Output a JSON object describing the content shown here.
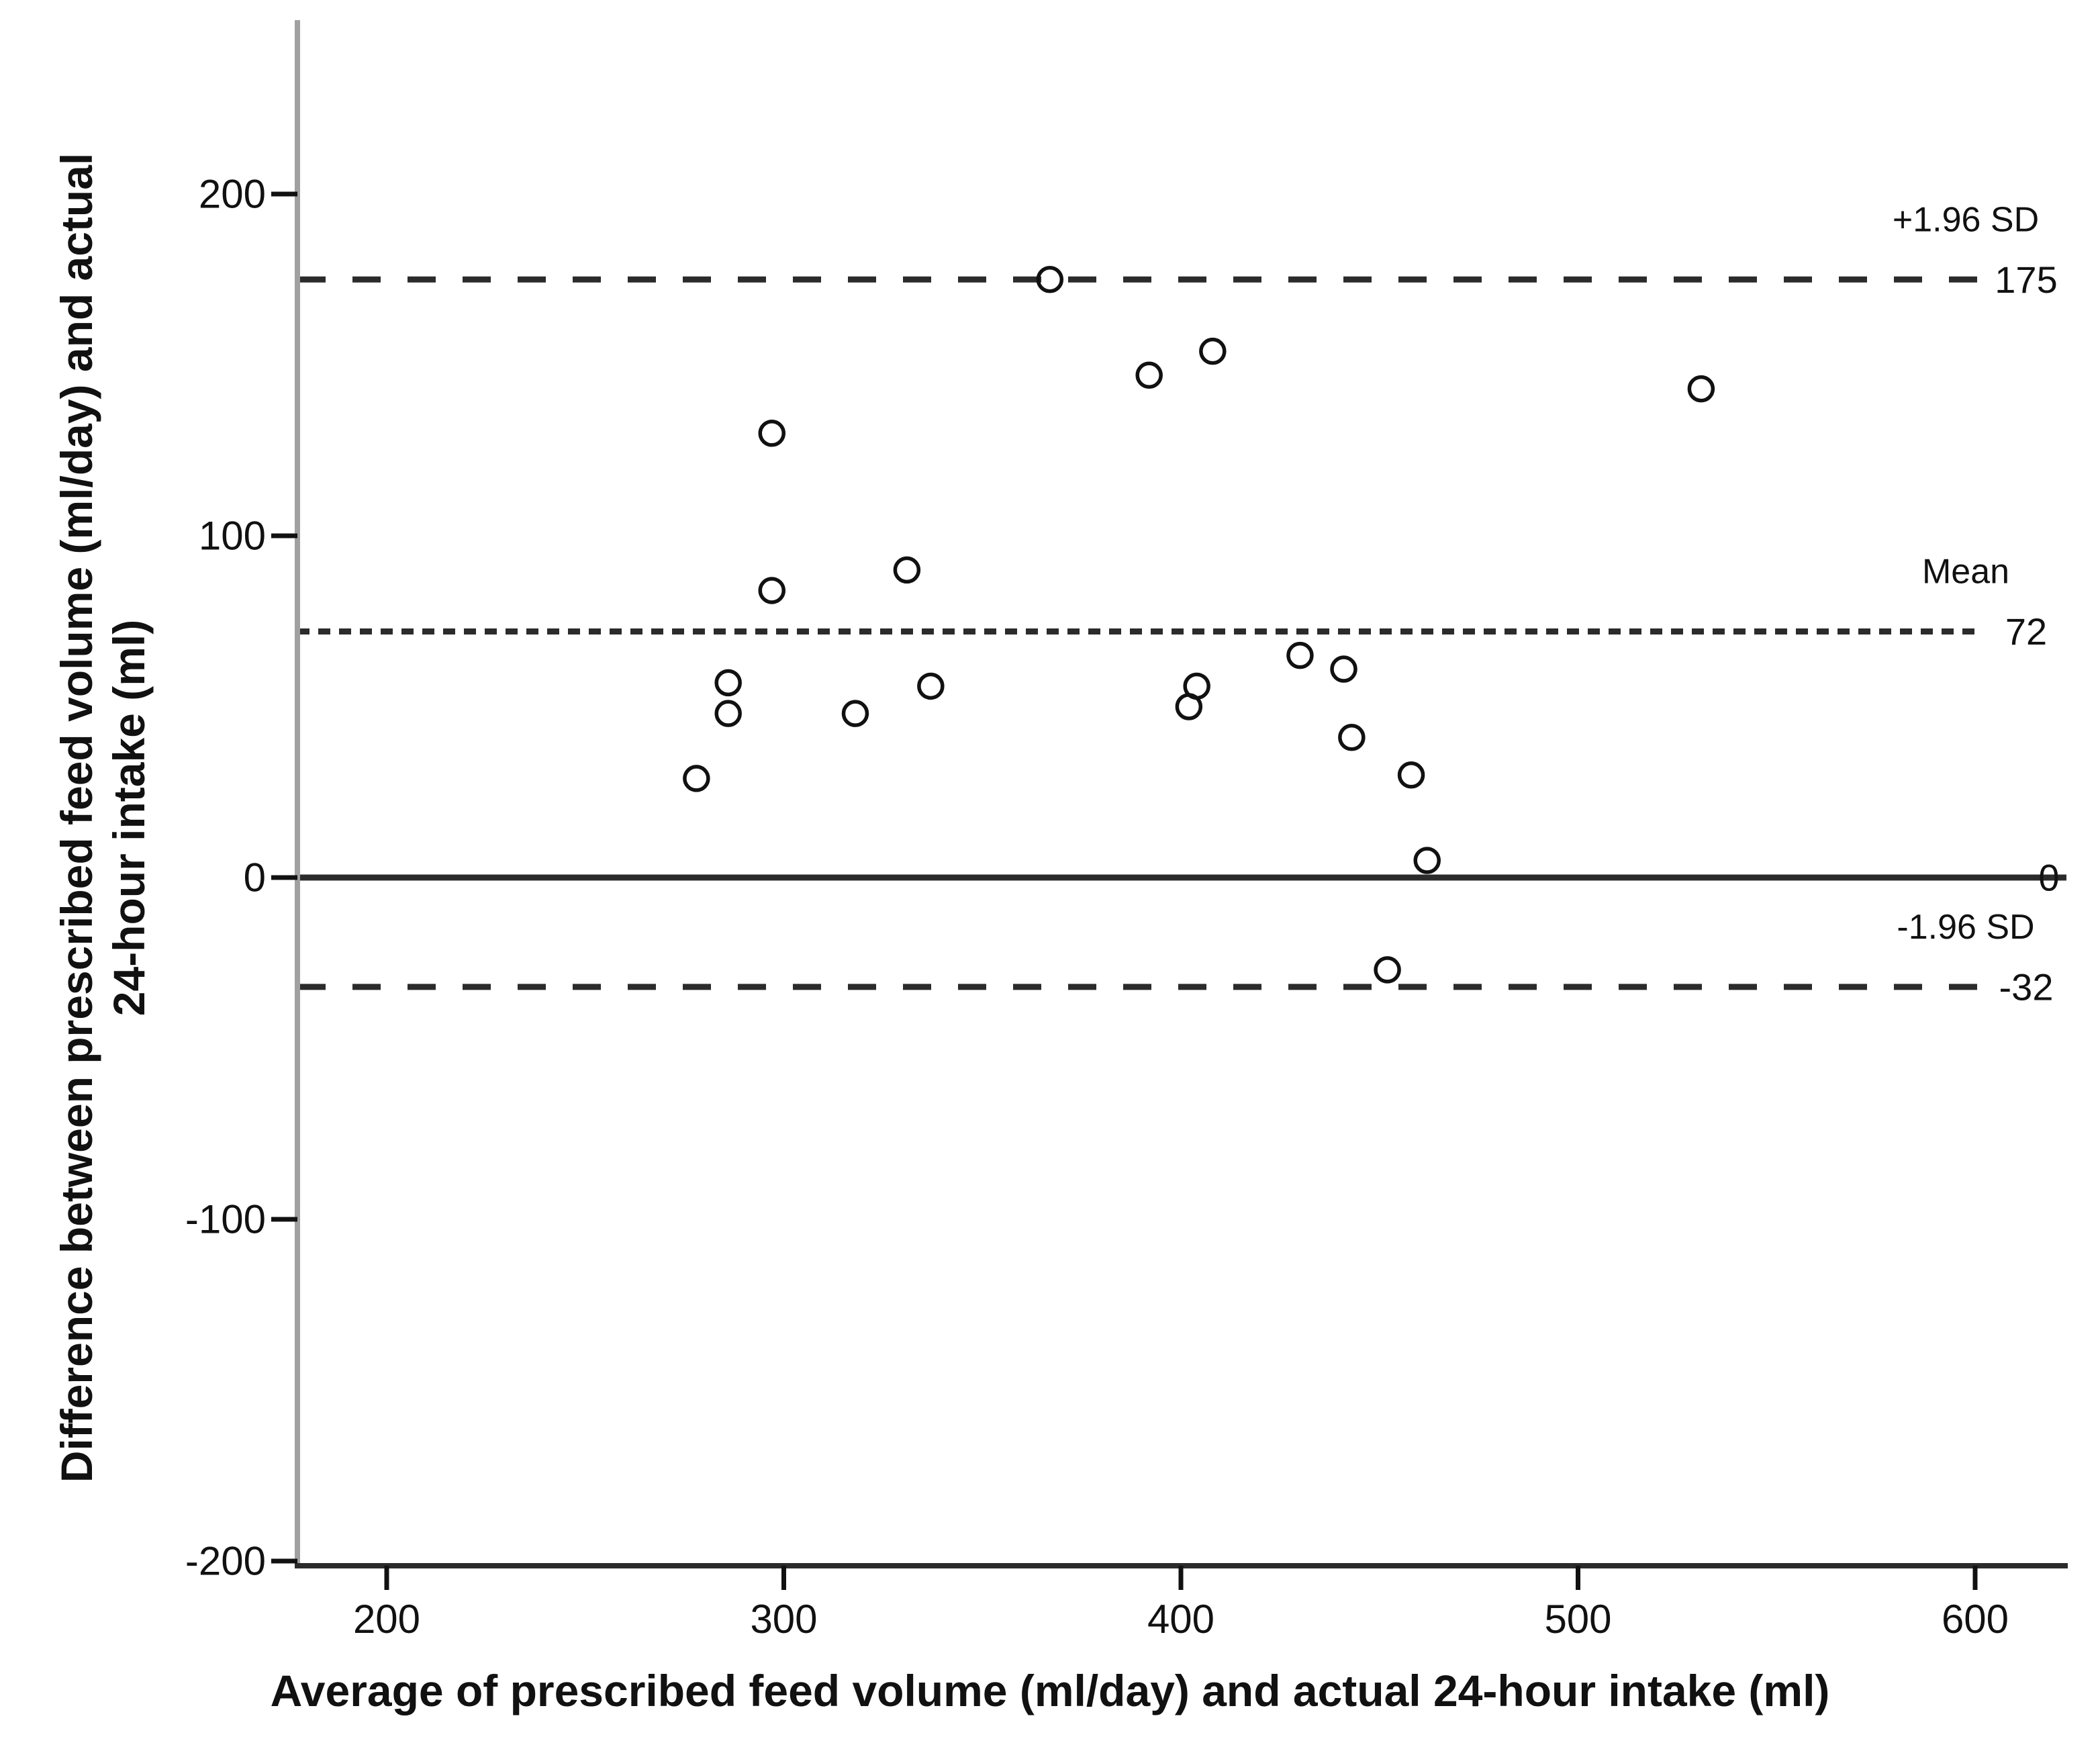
{
  "chart_data": {
    "type": "scatter",
    "title": "",
    "xlabel": "Average of prescribed feed volume (ml/day) and actual 24-hour intake (ml)",
    "ylabel": "Difference between prescribed feed volume (ml/day) and actual 24-hour intake (ml)",
    "ylabel_lines": [
      "Difference between prescribed feed volume (ml/day) and actual",
      "24-hour intake (ml)"
    ],
    "xlim": [
      175,
      622
    ],
    "ylim": [
      -202,
      246
    ],
    "x_ticks": [
      "200",
      "300",
      "400",
      "500",
      "600"
    ],
    "y_ticks": [
      "200",
      "100",
      "0",
      "-100",
      "-200"
    ],
    "grid": false,
    "legend_position": "none",
    "marker": "open-circle",
    "points": [
      {
        "x": 367,
        "y": 175
      },
      {
        "x": 392,
        "y": 147
      },
      {
        "x": 408,
        "y": 154
      },
      {
        "x": 531,
        "y": 143
      },
      {
        "x": 297,
        "y": 130
      },
      {
        "x": 331,
        "y": 90
      },
      {
        "x": 297,
        "y": 84
      },
      {
        "x": 430,
        "y": 65
      },
      {
        "x": 441,
        "y": 61
      },
      {
        "x": 286,
        "y": 57
      },
      {
        "x": 337,
        "y": 56
      },
      {
        "x": 404,
        "y": 56
      },
      {
        "x": 286,
        "y": 48
      },
      {
        "x": 318,
        "y": 48
      },
      {
        "x": 402,
        "y": 50
      },
      {
        "x": 443,
        "y": 41
      },
      {
        "x": 458,
        "y": 30
      },
      {
        "x": 278,
        "y": 29
      },
      {
        "x": 462,
        "y": 5
      },
      {
        "x": 452,
        "y": -27
      }
    ],
    "reference_lines": [
      {
        "name": "+1.96 SD",
        "value": 175,
        "value_label": "175",
        "line_style": "long-dash"
      },
      {
        "name": "Mean",
        "value": 72,
        "value_label": "72",
        "line_style": "short-dash"
      },
      {
        "name": "",
        "value": 0,
        "value_label": "0",
        "line_style": "solid"
      },
      {
        "name": "-1.96 SD",
        "value": -32,
        "value_label": "-32",
        "line_style": "long-dash"
      }
    ]
  },
  "colors": {
    "ink": "#111111",
    "dark_line": "#2b2b2b",
    "y_axis": "#a0a0a0",
    "background": "#ffffff"
  }
}
